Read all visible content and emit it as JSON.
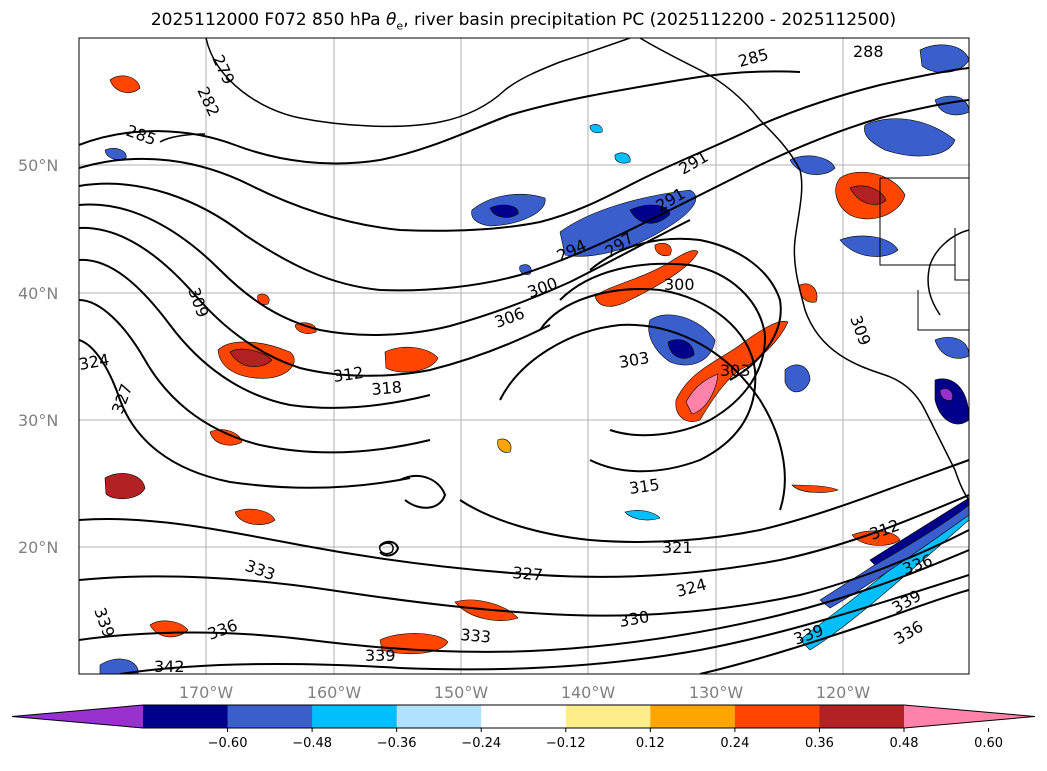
{
  "title": "2025112000 F072 850 hPa θe, river basin precipitation PC (2025112200 - 2025112500)",
  "title_parts": {
    "prefix": "2025112000 F072 850 hPa ",
    "symbol": "θ",
    "subscript": "e",
    "suffix": ", river basin precipitation PC (2025112200 - 2025112500)"
  },
  "lat_labels": [
    "50°N",
    "40°N",
    "30°N",
    "20°N"
  ],
  "lon_labels": [
    "170°W",
    "160°W",
    "150°W",
    "140°W",
    "130°W",
    "120°W"
  ],
  "colorbar": {
    "ticks": [
      "−0.60",
      "−0.48",
      "−0.36",
      "−0.24",
      "−0.12",
      "0.12",
      "0.24",
      "0.36",
      "0.48",
      "0.60"
    ],
    "colors": [
      "#9932CC",
      "#00008B",
      "#3A5FCD",
      "#00BFFF",
      "#B0E2FF",
      "#FFFFFF",
      "#FFEC8B",
      "#FFA500",
      "#FF4500",
      "#B22222",
      "#FF82AB"
    ]
  },
  "contour_labels": [
    "279",
    "282",
    "285",
    "285",
    "288",
    "291",
    "291",
    "294",
    "297",
    "300",
    "300",
    "303",
    "303",
    "306",
    "309",
    "309",
    "312",
    "312",
    "315",
    "318",
    "321",
    "324",
    "324",
    "327",
    "327",
    "330",
    "333",
    "333",
    "336",
    "336",
    "336",
    "339",
    "339",
    "339",
    "339",
    "342"
  ]
}
